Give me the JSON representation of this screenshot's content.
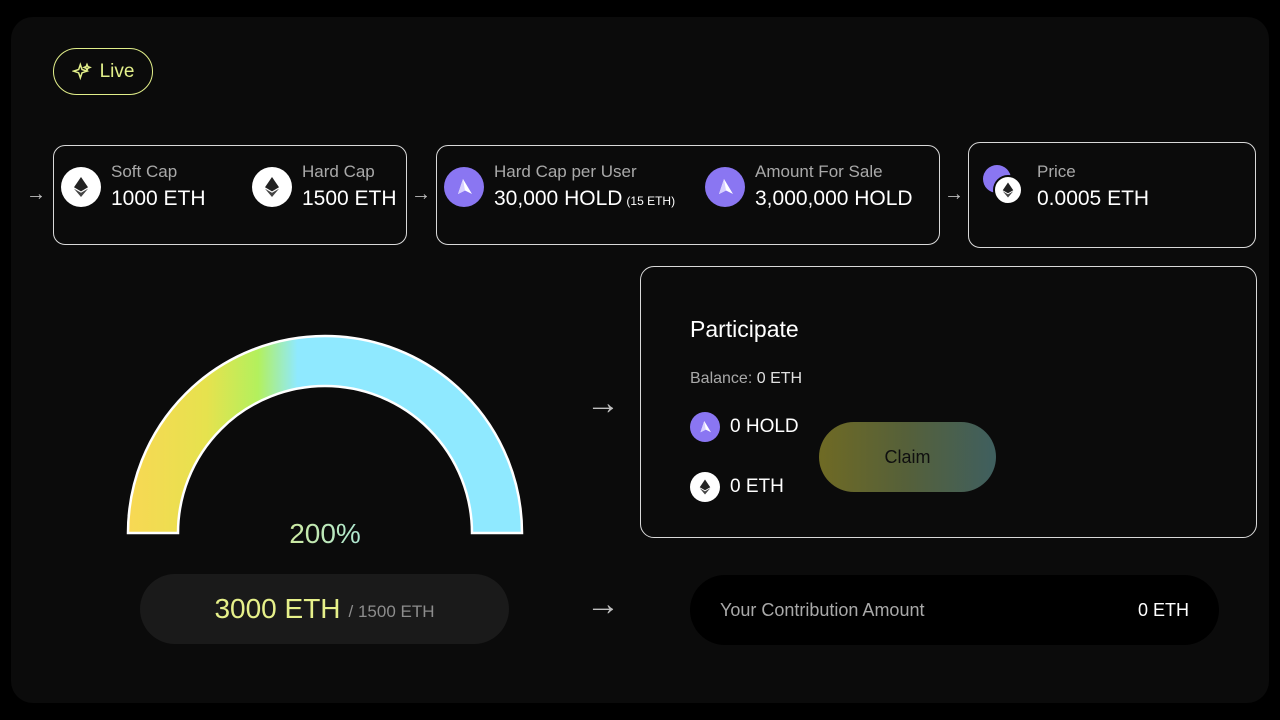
{
  "status": {
    "live_label": "Live",
    "accent": "#e2ef8a"
  },
  "stats": {
    "soft_cap": {
      "label": "Soft Cap",
      "value": "1000 ETH",
      "icon": "eth-icon"
    },
    "hard_cap": {
      "label": "Hard Cap",
      "value": "1500 ETH",
      "icon": "eth-icon"
    },
    "hard_cap_per_user": {
      "label": "Hard Cap per User",
      "value": "30,000 HOLD",
      "note": "(15 ETH)",
      "icon": "hold-icon"
    },
    "amount_for_sale": {
      "label": "Amount For Sale",
      "value": "3,000,000 HOLD",
      "icon": "hold-icon"
    },
    "price": {
      "label": "Price",
      "value": "0.0005 ETH",
      "icon": "hold-eth-pair-icon"
    }
  },
  "progress": {
    "percent_label": "200%",
    "percent": 200,
    "raised": "3000 ETH",
    "cap": "/ 1500  ETH",
    "gradient": [
      "#f5da4f",
      "#b6f060",
      "#90eaff"
    ]
  },
  "participate": {
    "title": "Participate",
    "balance_label": "Balance:",
    "balance_value": "0 ETH",
    "hold_amount": "0 HOLD",
    "eth_amount": "0 ETH",
    "claim_label": "Claim"
  },
  "contribution": {
    "label": "Your Contribution Amount",
    "value": "0 ETH"
  },
  "colors": {
    "hold": "#8a76f2",
    "panel": "#0b0b0b"
  }
}
